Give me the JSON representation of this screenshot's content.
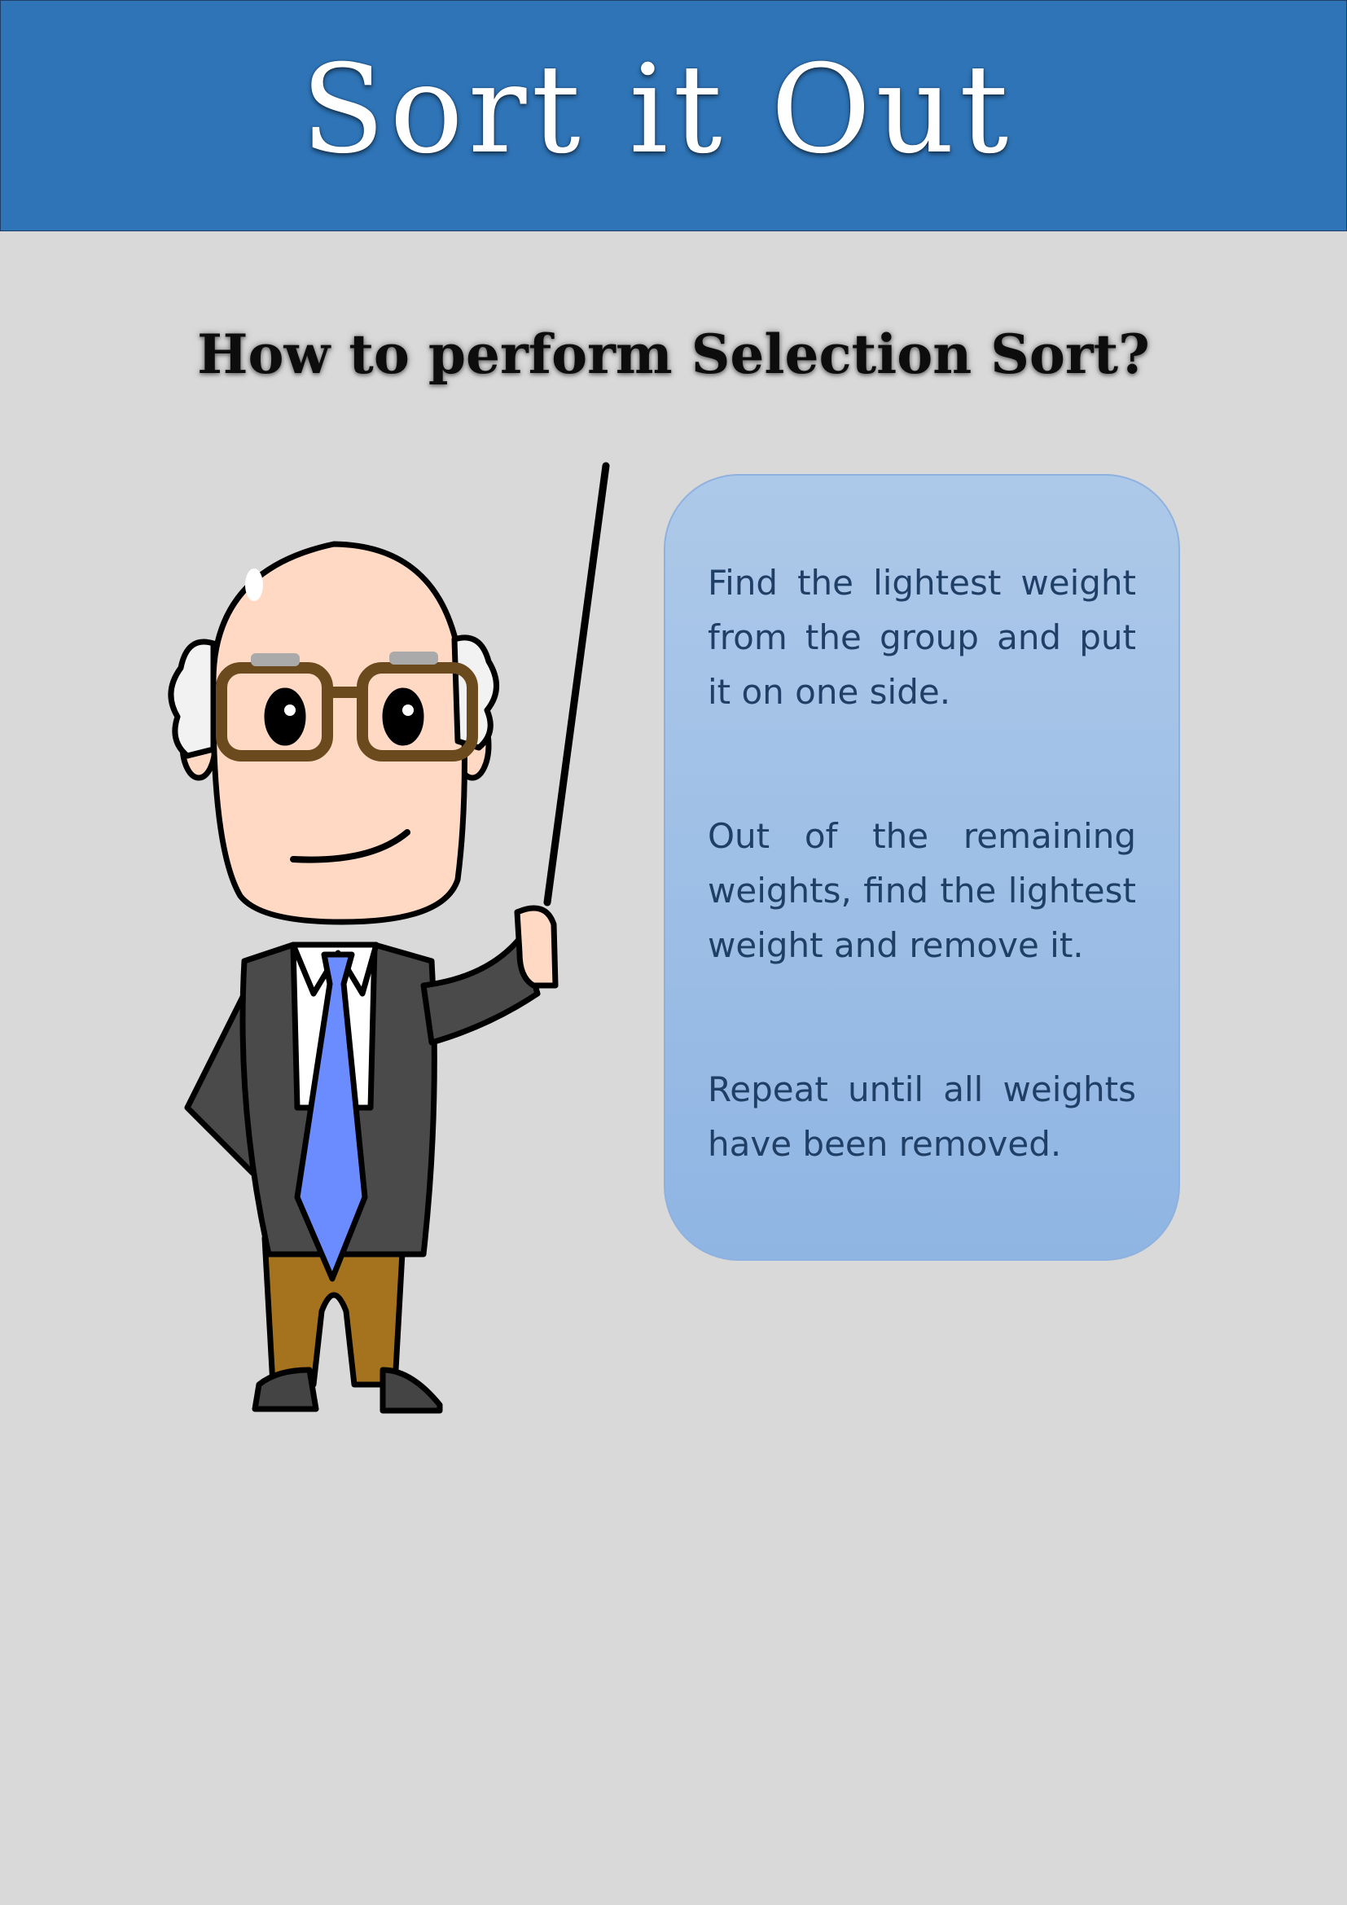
{
  "banner": {
    "title": "Sort it Out"
  },
  "subtitle": "How to perform Selection Sort?",
  "steps": [
    "Find the lightest weight from the group and put it on one side.",
    "Out of the remaining weights, find the lightest weight and remove it.",
    "Repeat until all weights have been removed."
  ],
  "colors": {
    "banner": "#2e74b7",
    "background": "#d9d9d9",
    "box": "#9ebfe6",
    "box_text": "#1f3f66"
  }
}
